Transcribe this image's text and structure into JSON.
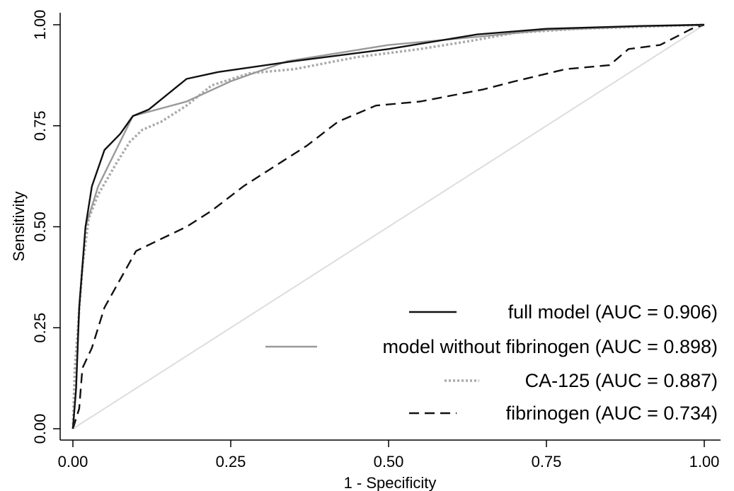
{
  "chart_data": {
    "type": "line",
    "title": "",
    "xlabel": "1 - Specificity",
    "ylabel": "Sensitivity",
    "xlim": [
      0,
      1
    ],
    "ylim": [
      0,
      1
    ],
    "x_ticks": [
      "0.00",
      "0.25",
      "0.50",
      "0.75",
      "1.00"
    ],
    "y_ticks": [
      "0.00",
      "0.25",
      "0.50",
      "0.75",
      "1.00"
    ],
    "grid": false,
    "legend_position": "bottom-right",
    "series": [
      {
        "name": "full model (AUC = 0.906)",
        "style": "solid",
        "color": "#111111",
        "points": [
          [
            0,
            0
          ],
          [
            0.005,
            0.1
          ],
          [
            0.01,
            0.3
          ],
          [
            0.02,
            0.5
          ],
          [
            0.03,
            0.6
          ],
          [
            0.05,
            0.69
          ],
          [
            0.075,
            0.73
          ],
          [
            0.095,
            0.774
          ],
          [
            0.12,
            0.79
          ],
          [
            0.18,
            0.866
          ],
          [
            0.23,
            0.883
          ],
          [
            0.35,
            0.91
          ],
          [
            0.5,
            0.94
          ],
          [
            0.64,
            0.976
          ],
          [
            0.75,
            0.99
          ],
          [
            0.9,
            0.997
          ],
          [
            1,
            1
          ]
        ]
      },
      {
        "name": "model without fibrinogen (AUC = 0.898)",
        "style": "solid",
        "color": "#999999",
        "points": [
          [
            0,
            0
          ],
          [
            0.005,
            0.1
          ],
          [
            0.01,
            0.3
          ],
          [
            0.02,
            0.5
          ],
          [
            0.04,
            0.6
          ],
          [
            0.095,
            0.774
          ],
          [
            0.18,
            0.81
          ],
          [
            0.25,
            0.86
          ],
          [
            0.34,
            0.91
          ],
          [
            0.5,
            0.95
          ],
          [
            0.64,
            0.97
          ],
          [
            0.75,
            0.987
          ],
          [
            0.9,
            0.996
          ],
          [
            1,
            1
          ]
        ]
      },
      {
        "name": "CA-125 (AUC = 0.887)",
        "style": "dotted",
        "color": "#aaaaaa",
        "points": [
          [
            0,
            0
          ],
          [
            0.003,
            0.15
          ],
          [
            0.008,
            0.25
          ],
          [
            0.015,
            0.4
          ],
          [
            0.025,
            0.52
          ],
          [
            0.04,
            0.58
          ],
          [
            0.055,
            0.62
          ],
          [
            0.07,
            0.66
          ],
          [
            0.09,
            0.71
          ],
          [
            0.11,
            0.74
          ],
          [
            0.14,
            0.76
          ],
          [
            0.18,
            0.8
          ],
          [
            0.22,
            0.85
          ],
          [
            0.28,
            0.88
          ],
          [
            0.35,
            0.89
          ],
          [
            0.45,
            0.92
          ],
          [
            0.55,
            0.94
          ],
          [
            0.63,
            0.96
          ],
          [
            0.7,
            0.98
          ],
          [
            0.8,
            0.99
          ],
          [
            0.9,
            0.995
          ],
          [
            1,
            1
          ]
        ]
      },
      {
        "name": "fibrinogen (AUC = 0.734)",
        "style": "dashed",
        "color": "#111111",
        "points": [
          [
            0,
            0
          ],
          [
            0.01,
            0.05
          ],
          [
            0.015,
            0.15
          ],
          [
            0.03,
            0.2
          ],
          [
            0.05,
            0.3
          ],
          [
            0.1,
            0.44
          ],
          [
            0.14,
            0.47
          ],
          [
            0.18,
            0.5
          ],
          [
            0.22,
            0.54
          ],
          [
            0.27,
            0.6
          ],
          [
            0.32,
            0.65
          ],
          [
            0.37,
            0.7
          ],
          [
            0.42,
            0.76
          ],
          [
            0.48,
            0.8
          ],
          [
            0.55,
            0.81
          ],
          [
            0.65,
            0.84
          ],
          [
            0.7,
            0.86
          ],
          [
            0.78,
            0.89
          ],
          [
            0.85,
            0.9
          ],
          [
            0.88,
            0.94
          ],
          [
            0.93,
            0.95
          ],
          [
            0.98,
            0.99
          ],
          [
            1,
            1
          ]
        ]
      },
      {
        "name": "",
        "style": "reference",
        "color": "#dddddd",
        "points": [
          [
            0,
            0
          ],
          [
            1,
            1
          ]
        ]
      }
    ]
  }
}
